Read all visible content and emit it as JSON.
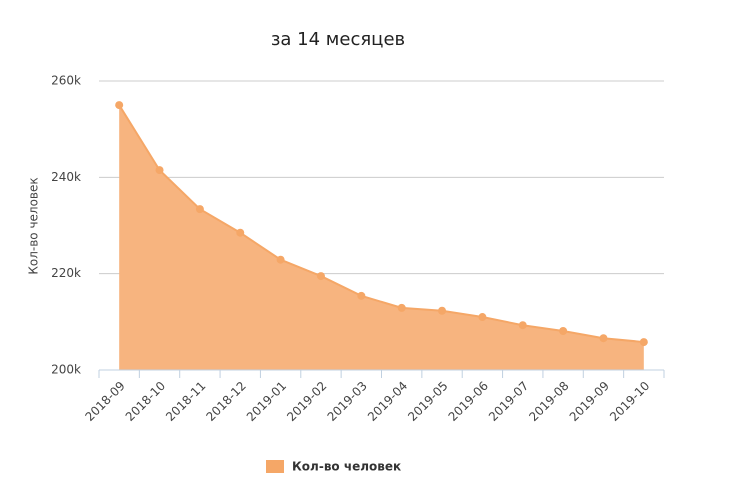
{
  "chart_data": {
    "type": "area",
    "title": "за 14 месяцев",
    "y_label": "Кол-во человек",
    "categories": [
      "2018-09",
      "2018-10",
      "2018-11",
      "2018-12",
      "2019-01",
      "2019-02",
      "2019-03",
      "2019-04",
      "2019-05",
      "2019-06",
      "2019-07",
      "2019-08",
      "2019-09",
      "2019-10"
    ],
    "series": [
      {
        "name": "Кол-во человек",
        "color": "#f5a767",
        "fill": "#f7b47f",
        "values": [
          255000,
          241500,
          233400,
          228500,
          222900,
          219500,
          215400,
          212900,
          212300,
          211000,
          209300,
          208100,
          206600,
          205800
        ]
      }
    ],
    "ylim": [
      200000,
      260000
    ],
    "yticks": [
      {
        "value": 200000,
        "label": "200k"
      },
      {
        "value": 220000,
        "label": "220k"
      },
      {
        "value": 240000,
        "label": "240k"
      },
      {
        "value": 260000,
        "label": "260k"
      }
    ],
    "grid": true
  }
}
